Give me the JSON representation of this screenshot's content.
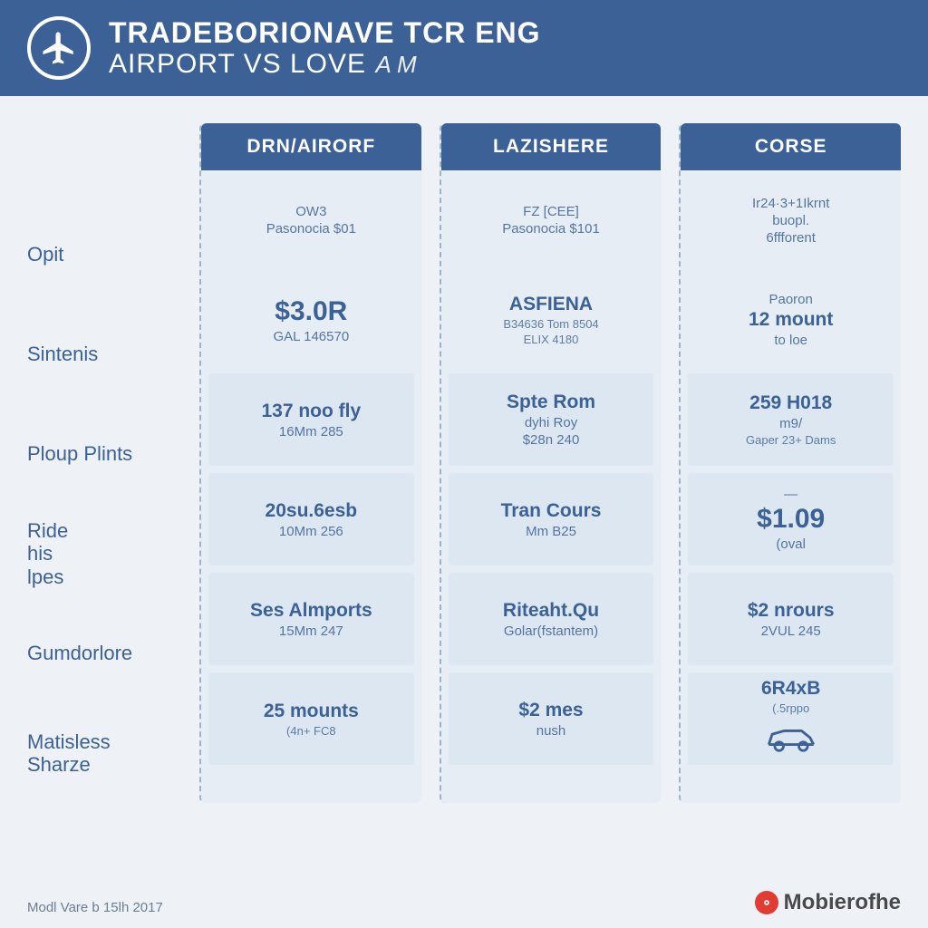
{
  "colors": {
    "brand_blue": "#3b6196",
    "page_bg": "#eef2f7",
    "col_bg": "#e6edf5",
    "cell_box_bg": "#dde7f1",
    "dashed_border": "#9db2cc",
    "footer_text": "#6b7d94",
    "brand_red": "#e03c31"
  },
  "header": {
    "line1": "TRADEBORIONAVE   TCR ENG",
    "line2": "AIRPORT VS LOVE",
    "doodle": "A M"
  },
  "row_labels": [
    "Opit",
    "Sintenis",
    "Ploup Plints",
    "Ride his lpes",
    "Gumdorlore",
    "Matisless Sharze"
  ],
  "columns": [
    {
      "header": "DRN/AIRORF",
      "cells": [
        {
          "lines": [
            "OW3",
            "Pasonocia  $01"
          ],
          "styles": [
            "small",
            "small"
          ],
          "box": false
        },
        {
          "lines": [
            "$3.0R",
            "GAL 146570"
          ],
          "styles": [
            "big",
            "small"
          ],
          "box": false
        },
        {
          "lines": [
            "137 noo fly",
            "16Mm  285"
          ],
          "styles": [
            "med",
            "small"
          ],
          "box": true
        },
        {
          "lines": [
            "20su.6esb",
            "10Mm  256"
          ],
          "styles": [
            "med",
            "small"
          ],
          "box": true
        },
        {
          "lines": [
            "Ses Almports",
            "15Mm  247"
          ],
          "styles": [
            "med",
            "small"
          ],
          "box": true
        },
        {
          "lines": [
            "25 mounts",
            "(4n+ FC8"
          ],
          "styles": [
            "med",
            "tiny"
          ],
          "box": true
        }
      ]
    },
    {
      "header": "LAZISHERE",
      "cells": [
        {
          "lines": [
            "FZ  [CEE]",
            "Pasonocia  $101"
          ],
          "styles": [
            "small",
            "small"
          ],
          "box": false
        },
        {
          "lines": [
            "ASFIENA",
            "B34636  Tom 8504",
            "ELIX  4180"
          ],
          "styles": [
            "med",
            "tiny",
            "tiny"
          ],
          "box": false
        },
        {
          "lines": [
            "Spte Rom",
            "dyhi Roy",
            "$28n  240"
          ],
          "styles": [
            "med",
            "small",
            "small"
          ],
          "box": true
        },
        {
          "lines": [
            "Tran Cours",
            "Mm  B25"
          ],
          "styles": [
            "med",
            "small"
          ],
          "box": true
        },
        {
          "lines": [
            "Riteaht.Qu",
            "Golar(fstantem)"
          ],
          "styles": [
            "med",
            "small"
          ],
          "box": true
        },
        {
          "lines": [
            "$2 mes",
            "nush"
          ],
          "styles": [
            "med",
            "small"
          ],
          "box": true
        }
      ]
    },
    {
      "header": "CORSE",
      "cells": [
        {
          "lines": [
            "Ir24·3+1Ikrnt",
            "buopl.",
            "6ffforent"
          ],
          "styles": [
            "small",
            "small",
            "small"
          ],
          "box": false
        },
        {
          "lines": [
            "Paoron",
            "12 mount",
            "to loe"
          ],
          "styles": [
            "small",
            "med",
            "small"
          ],
          "box": false
        },
        {
          "lines": [
            "259 H018",
            "m9/",
            "Gaper 23+ Dams"
          ],
          "styles": [
            "med",
            "small",
            "tiny"
          ],
          "box": true
        },
        {
          "lines": [
            "—",
            "$1.09",
            "(oval"
          ],
          "styles": [
            "small",
            "big",
            "small"
          ],
          "box": true
        },
        {
          "lines": [
            "$2 nrours",
            "2VUL  245"
          ],
          "styles": [
            "med",
            "small"
          ],
          "box": true
        },
        {
          "lines": [
            "6R4xB",
            "(.5rppo"
          ],
          "styles": [
            "med",
            "tiny"
          ],
          "box": true,
          "car": true
        }
      ]
    }
  ],
  "footer": {
    "credit": "Modl Vare b 15lh 2017",
    "brand": "Mobierofhe"
  }
}
